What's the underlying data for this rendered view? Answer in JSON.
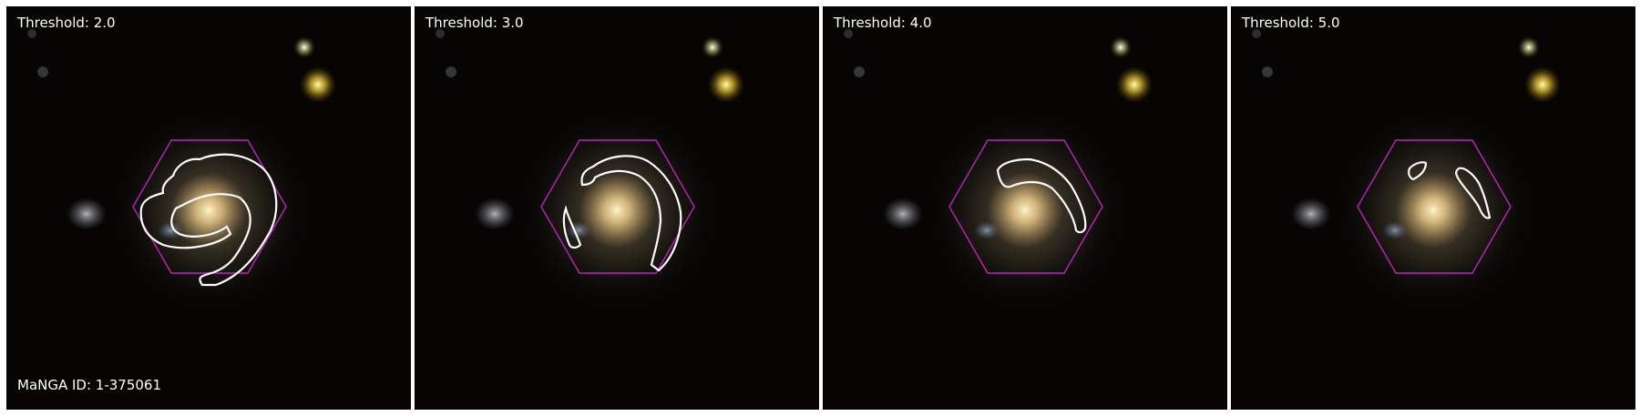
{
  "figure": {
    "manga_id_label": "MaNGA ID: 1-375061",
    "panels": [
      {
        "threshold_label": "Threshold: 2.0"
      },
      {
        "threshold_label": "Threshold: 3.0"
      },
      {
        "threshold_label": "Threshold: 4.0"
      },
      {
        "threshold_label": "Threshold: 5.0"
      }
    ]
  },
  "colors": {
    "ifu_hexagon": "#c020c0",
    "contour": "#ffffff",
    "background": "#050403",
    "galaxy_core": "#f0d8a0"
  }
}
